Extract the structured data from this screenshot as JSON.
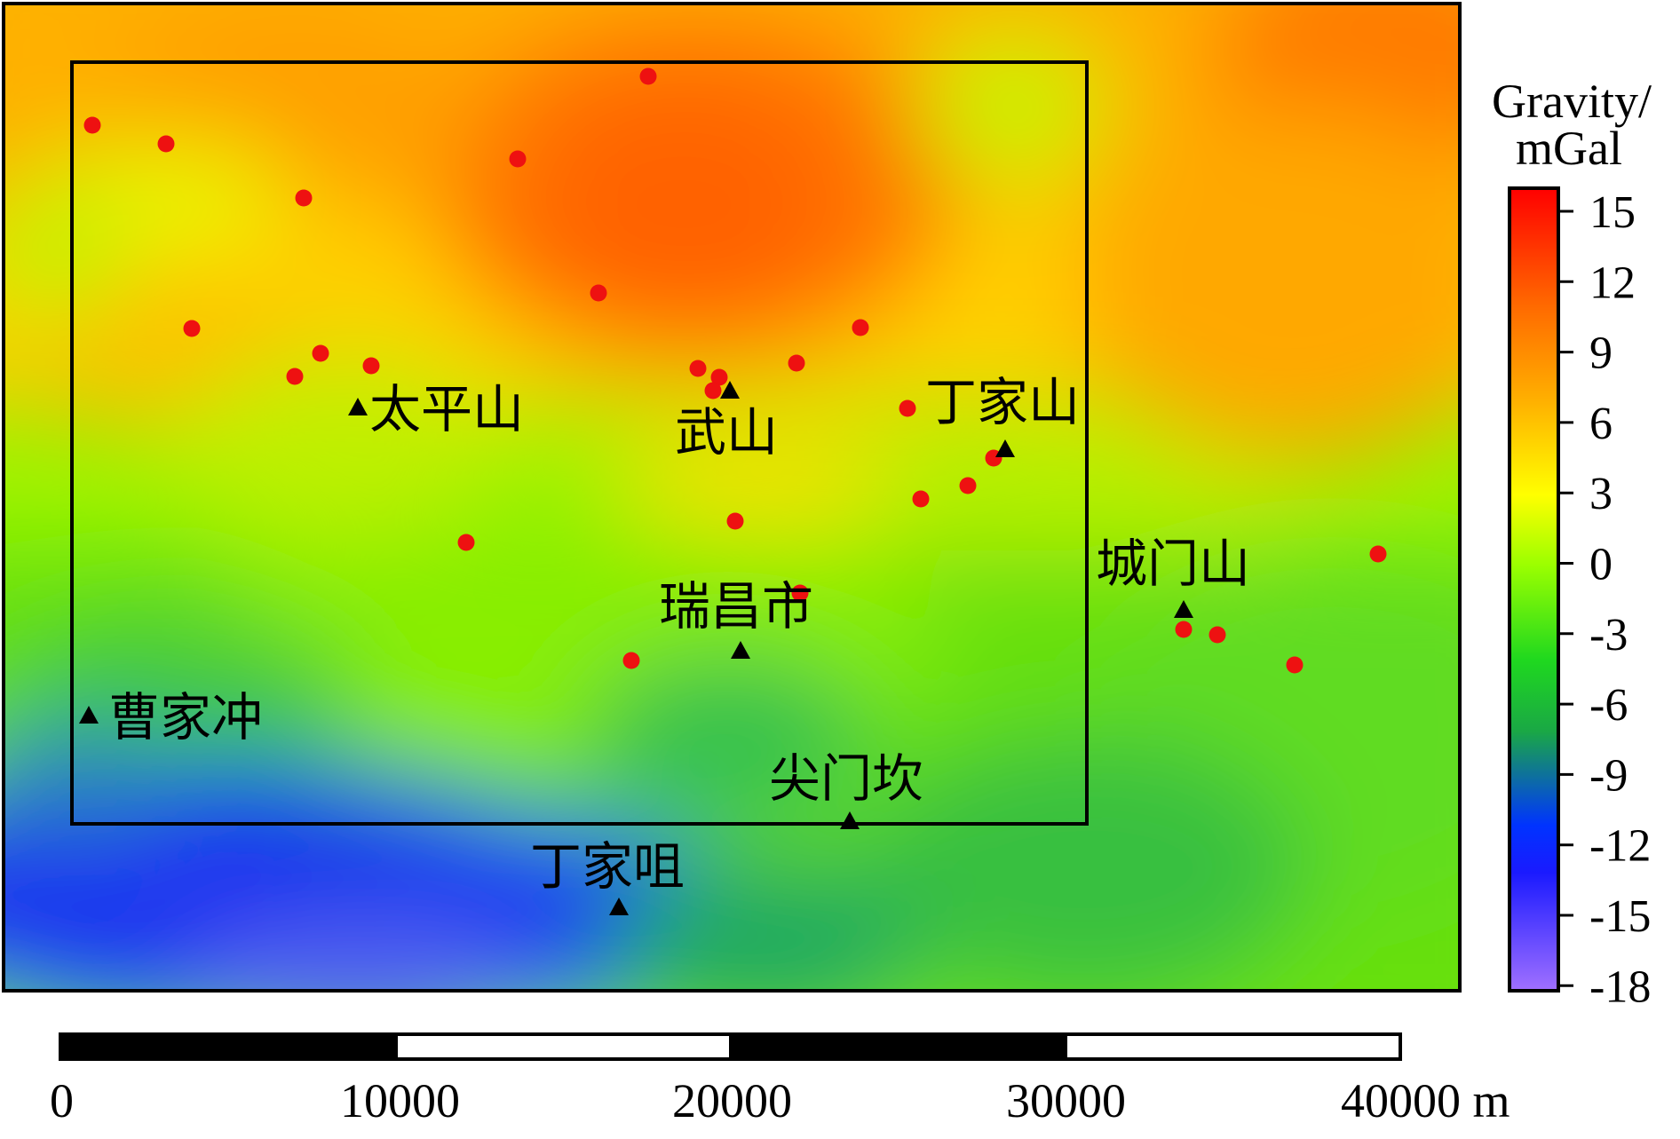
{
  "colorbar": {
    "title_line1": "Gravity/",
    "title_line2": "mGal",
    "ticks": [
      "15",
      "12",
      "9",
      "6",
      "3",
      "0",
      "-3",
      "-6",
      "-9",
      "-12",
      "-15",
      "-18"
    ],
    "stops": [
      {
        "value": -18,
        "color": "#a070ff"
      },
      {
        "value": -13,
        "color": "#1a1aff"
      },
      {
        "value": -11,
        "color": "#0033ff"
      },
      {
        "value": -7,
        "color": "#1aa845"
      },
      {
        "value": -4,
        "color": "#1fd81f"
      },
      {
        "value": 0,
        "color": "#9aff00"
      },
      {
        "value": 3,
        "color": "#ffff00"
      },
      {
        "value": 7,
        "color": "#ffb000"
      },
      {
        "value": 11,
        "color": "#ff6a00"
      },
      {
        "value": 16,
        "color": "#ff0000"
      }
    ]
  },
  "places": [
    {
      "name": "太平山",
      "id": "taipingshan"
    },
    {
      "name": "武山",
      "id": "wushan"
    },
    {
      "name": "丁家山",
      "id": "dingjiashan"
    },
    {
      "name": "城门山",
      "id": "chengmenshan"
    },
    {
      "name": "瑞昌市",
      "id": "ruichang"
    },
    {
      "name": "曹家冲",
      "id": "caojiachong"
    },
    {
      "name": "尖门坎",
      "id": "jianmenkan"
    },
    {
      "name": "丁家咀",
      "id": "dingjiazui"
    }
  ],
  "scalebar": {
    "labels": [
      "0",
      "10000",
      "20000",
      "30000",
      "40000 m"
    ]
  },
  "colors": {
    "sample_point": "#ee1111",
    "marker": "#000000"
  }
}
